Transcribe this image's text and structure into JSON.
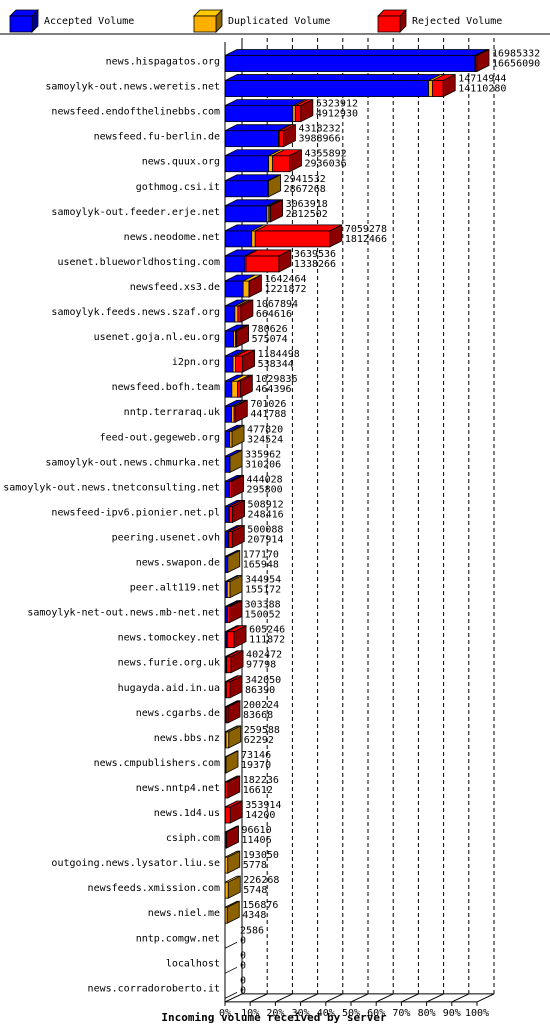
{
  "chart_data": {
    "type": "bar",
    "orientation": "horizontal",
    "style": "3d-stacked",
    "xlabel": "Incoming volume received by server",
    "xlim": [
      0,
      100
    ],
    "grid": true,
    "legend": "top",
    "tick_labels": [
      "0%",
      "10%",
      "20%",
      "30%",
      "40%",
      "50%",
      "60%",
      "70%",
      "80%",
      "90%",
      "100%"
    ],
    "series": [
      {
        "name": "Accepted Volume",
        "color": "#0000ff"
      },
      {
        "name": "Duplicated Volume",
        "color": "#ffb000"
      },
      {
        "name": "Rejected Volume",
        "color": "#ff0000"
      }
    ],
    "rows": [
      {
        "server": "news.hispagatos.org",
        "total": "16985332",
        "accepted": "16656090",
        "acc_pct": 99.2,
        "dup_pct": 0.3,
        "rej_pct": 0.5
      },
      {
        "server": "samoylyk-out.news.weretis.net",
        "total": "14714944",
        "accepted": "14110280",
        "acc_pct": 80.8,
        "dup_pct": 1.5,
        "rej_pct": 4.3
      },
      {
        "server": "newsfeed.endofthelinebbs.com",
        "total": "5323912",
        "accepted": "4912930",
        "acc_pct": 26.9,
        "dup_pct": 1.0,
        "rej_pct": 2.2
      },
      {
        "server": "newsfeed.fu-berlin.de",
        "total": "4318232",
        "accepted": "3988966",
        "acc_pct": 21.2,
        "dup_pct": 0.3,
        "rej_pct": 1.7
      },
      {
        "server": "news.quux.org",
        "total": "4355892",
        "accepted": "2936036",
        "acc_pct": 17.3,
        "dup_pct": 1.6,
        "rej_pct": 6.7
      },
      {
        "server": "gothmog.csi.it",
        "total": "2941532",
        "accepted": "2867268",
        "acc_pct": 16.9,
        "dup_pct": 0.4,
        "rej_pct": 0.0
      },
      {
        "server": "samoylyk-out.feeder.erje.net",
        "total": "3063918",
        "accepted": "2812502",
        "acc_pct": 16.6,
        "dup_pct": 0.8,
        "rej_pct": 0.7
      },
      {
        "server": "news.neodome.net",
        "total": "7059278",
        "accepted": "1812466",
        "acc_pct": 10.6,
        "dup_pct": 1.4,
        "rej_pct": 29.6
      },
      {
        "server": "usenet.blueworldhosting.com",
        "total": "3639536",
        "accepted": "1338266",
        "acc_pct": 7.9,
        "dup_pct": 0.4,
        "rej_pct": 13.1
      },
      {
        "server": "newsfeed.xs3.de",
        "total": "1642464",
        "accepted": "1221872",
        "acc_pct": 7.2,
        "dup_pct": 2.3,
        "rej_pct": 0.2
      },
      {
        "server": "samoylyk.feeds.news.szaf.org",
        "total": "1067894",
        "accepted": "664616",
        "acc_pct": 3.9,
        "dup_pct": 1.2,
        "rej_pct": 1.2
      },
      {
        "server": "usenet.goja.nl.eu.org",
        "total": "780626",
        "accepted": "575074",
        "acc_pct": 3.4,
        "dup_pct": 0.8,
        "rej_pct": 0.4
      },
      {
        "server": "i2pn.org",
        "total": "1184498",
        "accepted": "538344",
        "acc_pct": 3.2,
        "dup_pct": 1.0,
        "rej_pct": 2.8
      },
      {
        "server": "newsfeed.bofh.team",
        "total": "1029836",
        "accepted": "464396",
        "acc_pct": 2.7,
        "dup_pct": 2.3,
        "rej_pct": 1.1
      },
      {
        "server": "nntp.terraraq.uk",
        "total": "701026",
        "accepted": "441788",
        "acc_pct": 2.6,
        "dup_pct": 1.0,
        "rej_pct": 0.5
      },
      {
        "server": "feed-out.gegeweb.org",
        "total": "477820",
        "accepted": "324524",
        "acc_pct": 1.9,
        "dup_pct": 0.9,
        "rej_pct": 0.0
      },
      {
        "server": "samoylyk-out.news.chmurka.net",
        "total": "335962",
        "accepted": "310206",
        "acc_pct": 1.8,
        "dup_pct": 0.2,
        "rej_pct": 0.0
      },
      {
        "server": "samoylyk-out.news.tnetconsulting.net",
        "total": "444028",
        "accepted": "295800",
        "acc_pct": 1.7,
        "dup_pct": 0.1,
        "rej_pct": 0.8
      },
      {
        "server": "newsfeed-ipv6.pionier.net.pl",
        "total": "508912",
        "accepted": "248416",
        "acc_pct": 1.5,
        "dup_pct": 0.2,
        "rej_pct": 1.3
      },
      {
        "server": "peering.usenet.ovh",
        "total": "500088",
        "accepted": "207914",
        "acc_pct": 1.2,
        "dup_pct": 0.3,
        "rej_pct": 1.4
      },
      {
        "server": "news.swapon.de",
        "total": "177170",
        "accepted": "165948",
        "acc_pct": 1.0,
        "dup_pct": 0.1,
        "rej_pct": 0.0
      },
      {
        "server": "peer.alt119.net",
        "total": "344954",
        "accepted": "155172",
        "acc_pct": 0.9,
        "dup_pct": 1.1,
        "rej_pct": 0.0
      },
      {
        "server": "samoylyk-net-out.news.mb-net.net",
        "total": "303388",
        "accepted": "150052",
        "acc_pct": 0.9,
        "dup_pct": 0.1,
        "rej_pct": 0.8
      },
      {
        "server": "news.tomockey.net",
        "total": "605246",
        "accepted": "111872",
        "acc_pct": 0.7,
        "dup_pct": 0.2,
        "rej_pct": 2.7
      },
      {
        "server": "news.furie.org.uk",
        "total": "402472",
        "accepted": "97798",
        "acc_pct": 0.6,
        "dup_pct": 0.1,
        "rej_pct": 1.7
      },
      {
        "server": "hugayda.aid.in.ua",
        "total": "342050",
        "accepted": "86390",
        "acc_pct": 0.5,
        "dup_pct": 0.0,
        "rej_pct": 1.5
      },
      {
        "server": "news.cgarbs.de",
        "total": "200224",
        "accepted": "83668",
        "acc_pct": 0.5,
        "dup_pct": 0.0,
        "rej_pct": 0.7
      },
      {
        "server": "news.bbs.nz",
        "total": "259588",
        "accepted": "62292",
        "acc_pct": 0.4,
        "dup_pct": 1.1,
        "rej_pct": 0.0
      },
      {
        "server": "news.cmpublishers.com",
        "total": "73146",
        "accepted": "19370",
        "acc_pct": 0.1,
        "dup_pct": 0.3,
        "rej_pct": 0.0
      },
      {
        "server": "news.nntp4.net",
        "total": "182236",
        "accepted": "16612",
        "acc_pct": 0.1,
        "dup_pct": 0.0,
        "rej_pct": 1.0
      },
      {
        "server": "news.1d4.us",
        "total": "353914",
        "accepted": "14200",
        "acc_pct": 0.1,
        "dup_pct": 0.0,
        "rej_pct": 2.0
      },
      {
        "server": "csiph.com",
        "total": "96610",
        "accepted": "11406",
        "acc_pct": 0.1,
        "dup_pct": 0.0,
        "rej_pct": 0.5
      },
      {
        "server": "outgoing.news.lysator.liu.se",
        "total": "193050",
        "accepted": "5778",
        "acc_pct": 0.0,
        "dup_pct": 1.1,
        "rej_pct": 0.0
      },
      {
        "server": "newsfeeds.xmission.com",
        "total": "226268",
        "accepted": "5748",
        "acc_pct": 0.0,
        "dup_pct": 1.3,
        "rej_pct": 0.0
      },
      {
        "server": "news.niel.me",
        "total": "156876",
        "accepted": "4348",
        "acc_pct": 0.0,
        "dup_pct": 0.9,
        "rej_pct": 0.0
      },
      {
        "server": "nntp.comgw.net",
        "total": "2586",
        "accepted": "0",
        "acc_pct": 0.0,
        "dup_pct": 0.0,
        "rej_pct": 0.0
      },
      {
        "server": "localhost",
        "total": "0",
        "accepted": "0",
        "acc_pct": 0.0,
        "dup_pct": 0.0,
        "rej_pct": 0.0
      },
      {
        "server": "news.corradoroberto.it",
        "total": "0",
        "accepted": "0",
        "acc_pct": 0.0,
        "dup_pct": 0.0,
        "rej_pct": 0.0
      }
    ]
  }
}
